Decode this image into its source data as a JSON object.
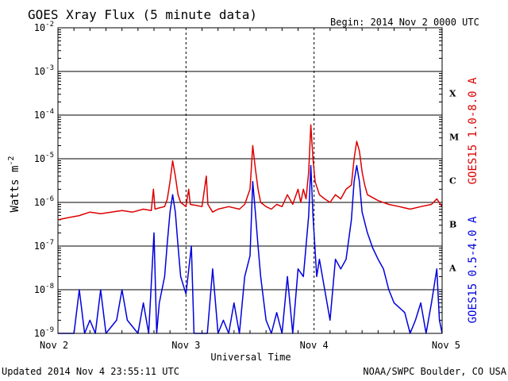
{
  "chart_data": {
    "type": "line",
    "title": "GOES Xray Flux (5 minute data)",
    "begin_label": "Begin:  2014 Nov 2 0000 UTC",
    "xlabel": "Universal Time",
    "ylabel": "Watts m",
    "ylabel_sup": "-2",
    "y_scale": "log",
    "ylim": [
      1e-09,
      0.01
    ],
    "xlim_hours": [
      0,
      72
    ],
    "y_ticks": [
      {
        "base": "10",
        "exp": "-2",
        "value": 0.01
      },
      {
        "base": "10",
        "exp": "-3",
        "value": 0.001
      },
      {
        "base": "10",
        "exp": "-4",
        "value": 0.0001
      },
      {
        "base": "10",
        "exp": "-5",
        "value": 1e-05
      },
      {
        "base": "10",
        "exp": "-6",
        "value": 1e-06
      },
      {
        "base": "10",
        "exp": "-7",
        "value": 1e-07
      },
      {
        "base": "10",
        "exp": "-8",
        "value": 1e-08
      },
      {
        "base": "10",
        "exp": "-9",
        "value": 1e-09
      }
    ],
    "x_ticks": [
      {
        "label": "Nov 2",
        "hour": 0
      },
      {
        "label": "Nov 3",
        "hour": 24
      },
      {
        "label": "Nov 4",
        "hour": 48
      },
      {
        "label": "Nov 5",
        "hour": 72
      }
    ],
    "flare_classes": [
      {
        "label": "X",
        "value": 0.000316
      },
      {
        "label": "M",
        "value": 3.16e-05
      },
      {
        "label": "C",
        "value": 3.16e-06
      },
      {
        "label": "B",
        "value": 3.16e-07
      },
      {
        "label": "A",
        "value": 3.16e-08
      }
    ],
    "grid": true,
    "series": [
      {
        "name": "GOES15 1.0-8.0 A",
        "color": "#dd0000",
        "points": [
          [
            0,
            4e-07
          ],
          [
            2,
            4.5e-07
          ],
          [
            4,
            5e-07
          ],
          [
            6,
            6e-07
          ],
          [
            8,
            5.5e-07
          ],
          [
            10,
            6e-07
          ],
          [
            12,
            6.5e-07
          ],
          [
            14,
            6e-07
          ],
          [
            16,
            7e-07
          ],
          [
            17.5,
            6.5e-07
          ],
          [
            17.9,
            2e-06
          ],
          [
            18.2,
            7e-07
          ],
          [
            19,
            7.5e-07
          ],
          [
            20,
            8e-07
          ],
          [
            20.5,
            1.2e-06
          ],
          [
            21,
            3e-06
          ],
          [
            21.5,
            9e-06
          ],
          [
            22,
            4e-06
          ],
          [
            22.5,
            1.5e-06
          ],
          [
            23,
            1e-06
          ],
          [
            24,
            8e-07
          ],
          [
            24.5,
            2e-06
          ],
          [
            24.8,
            9e-07
          ],
          [
            26,
            8.5e-07
          ],
          [
            27,
            8e-07
          ],
          [
            27.8,
            4e-06
          ],
          [
            28.1,
            9e-07
          ],
          [
            29,
            6e-07
          ],
          [
            30,
            7e-07
          ],
          [
            32,
            8e-07
          ],
          [
            34,
            7e-07
          ],
          [
            35,
            9e-07
          ],
          [
            36,
            2e-06
          ],
          [
            36.5,
            2e-05
          ],
          [
            37,
            6e-06
          ],
          [
            37.5,
            2e-06
          ],
          [
            38,
            1e-06
          ],
          [
            39,
            8e-07
          ],
          [
            40,
            7e-07
          ],
          [
            41,
            9e-07
          ],
          [
            42,
            8e-07
          ],
          [
            43,
            1.5e-06
          ],
          [
            44,
            9e-07
          ],
          [
            45,
            2e-06
          ],
          [
            45.5,
            1e-06
          ],
          [
            46,
            2e-06
          ],
          [
            46.5,
            1.2e-06
          ],
          [
            47,
            5e-06
          ],
          [
            47.4,
            6e-05
          ],
          [
            47.8,
            1e-05
          ],
          [
            48.2,
            3e-06
          ],
          [
            49,
            1.5e-06
          ],
          [
            50,
            1.2e-06
          ],
          [
            51,
            1e-06
          ],
          [
            52,
            1.5e-06
          ],
          [
            53,
            1.2e-06
          ],
          [
            54,
            2e-06
          ],
          [
            55,
            2.5e-06
          ],
          [
            55.5,
            1e-05
          ],
          [
            56,
            2.5e-05
          ],
          [
            56.5,
            1.5e-05
          ],
          [
            57,
            5e-06
          ],
          [
            57.5,
            2.5e-06
          ],
          [
            58,
            1.5e-06
          ],
          [
            60,
            1.1e-06
          ],
          [
            62,
            9e-07
          ],
          [
            64,
            8e-07
          ],
          [
            66,
            7e-07
          ],
          [
            68,
            8e-07
          ],
          [
            70,
            9e-07
          ],
          [
            71,
            1.2e-06
          ],
          [
            72,
            8e-07
          ]
        ]
      },
      {
        "name": "GOES15 0.5-4.0 A",
        "color": "#0000dd",
        "points": [
          [
            0,
            1e-09
          ],
          [
            3,
            1e-09
          ],
          [
            4,
            1e-08
          ],
          [
            5,
            1e-09
          ],
          [
            6,
            2e-09
          ],
          [
            7,
            1e-09
          ],
          [
            8,
            1e-08
          ],
          [
            9,
            1e-09
          ],
          [
            11,
            2e-09
          ],
          [
            12,
            1e-08
          ],
          [
            13,
            2e-09
          ],
          [
            15,
            1e-09
          ],
          [
            16,
            5e-09
          ],
          [
            17,
            1e-09
          ],
          [
            18,
            2e-07
          ],
          [
            18.5,
            1e-09
          ],
          [
            19,
            5e-09
          ],
          [
            20,
            2e-08
          ],
          [
            20.5,
            1.2e-07
          ],
          [
            21,
            6e-07
          ],
          [
            21.5,
            1.5e-06
          ],
          [
            22,
            6e-07
          ],
          [
            22.5,
            1e-07
          ],
          [
            23,
            2e-08
          ],
          [
            24,
            8e-09
          ],
          [
            25,
            1e-07
          ],
          [
            25.5,
            1e-09
          ],
          [
            27,
            1e-09
          ],
          [
            28,
            1e-09
          ],
          [
            29,
            3e-08
          ],
          [
            30,
            1e-09
          ],
          [
            31,
            2e-09
          ],
          [
            32,
            1e-09
          ],
          [
            33,
            5e-09
          ],
          [
            34,
            1e-09
          ],
          [
            35,
            2e-08
          ],
          [
            36,
            6e-08
          ],
          [
            36.5,
            3e-06
          ],
          [
            37,
            6e-07
          ],
          [
            37.5,
            1e-07
          ],
          [
            38,
            2e-08
          ],
          [
            39,
            2e-09
          ],
          [
            40,
            1e-09
          ],
          [
            41,
            3e-09
          ],
          [
            42,
            1e-09
          ],
          [
            43,
            2e-08
          ],
          [
            44,
            1e-09
          ],
          [
            45,
            3e-08
          ],
          [
            46,
            2e-08
          ],
          [
            47,
            5e-07
          ],
          [
            47.4,
            7e-06
          ],
          [
            47.8,
            5e-07
          ],
          [
            48.5,
            2e-08
          ],
          [
            49,
            5e-08
          ],
          [
            50,
            1e-08
          ],
          [
            51,
            2e-09
          ],
          [
            52,
            5e-08
          ],
          [
            53,
            3e-08
          ],
          [
            54,
            5e-08
          ],
          [
            55,
            4e-07
          ],
          [
            55.5,
            3e-06
          ],
          [
            56,
            7e-06
          ],
          [
            56.5,
            3e-06
          ],
          [
            57,
            6e-07
          ],
          [
            58,
            2e-07
          ],
          [
            59,
            9e-08
          ],
          [
            60,
            5e-08
          ],
          [
            61,
            3e-08
          ],
          [
            62,
            1e-08
          ],
          [
            63,
            5e-09
          ],
          [
            65,
            3e-09
          ],
          [
            66,
            1e-09
          ],
          [
            67,
            2e-09
          ],
          [
            68,
            5e-09
          ],
          [
            69,
            1e-09
          ],
          [
            70,
            5e-09
          ],
          [
            71,
            3e-08
          ],
          [
            71.5,
            2e-09
          ],
          [
            72,
            1e-09
          ]
        ]
      }
    ]
  },
  "footer": {
    "updated": "Updated 2014 Nov  4 23:55:11 UTC",
    "credit": "NOAA/SWPC Boulder, CO USA"
  }
}
